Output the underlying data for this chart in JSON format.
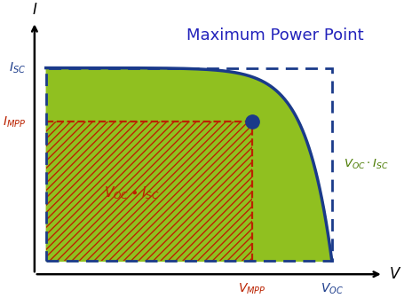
{
  "title": "Maximum Power Point",
  "title_color": "#2222bb",
  "title_fontsize": 13,
  "background_color": "#ffffff",
  "green_fill_color": "#90c020",
  "hatch_color": "#bb2200",
  "curve_color": "#1a3a8a",
  "mpp_dot_color": "#1a3a8a",
  "dashed_rect_color": "#1a3a8a",
  "dashed_mpp_color": "#bb2200",
  "I_SC": 1.0,
  "V_OC": 1.0,
  "I_MPP": 0.72,
  "V_MPP": 0.72,
  "label_ISC": "$I_{SC}$",
  "label_IMPP": "$I_{MPP}$",
  "label_VMPP": "$V_{MPP}$",
  "label_VOC": "$V_{OC}$",
  "label_V_axis": "$V$",
  "label_I_axis": "$I$",
  "label_VocIsc_side": "$V_{OC}\\cdot I_{SC}$",
  "label_VocIsc_inner": "$V_{OC} \\bullet I_{SC}$",
  "axis_color": "#000000"
}
